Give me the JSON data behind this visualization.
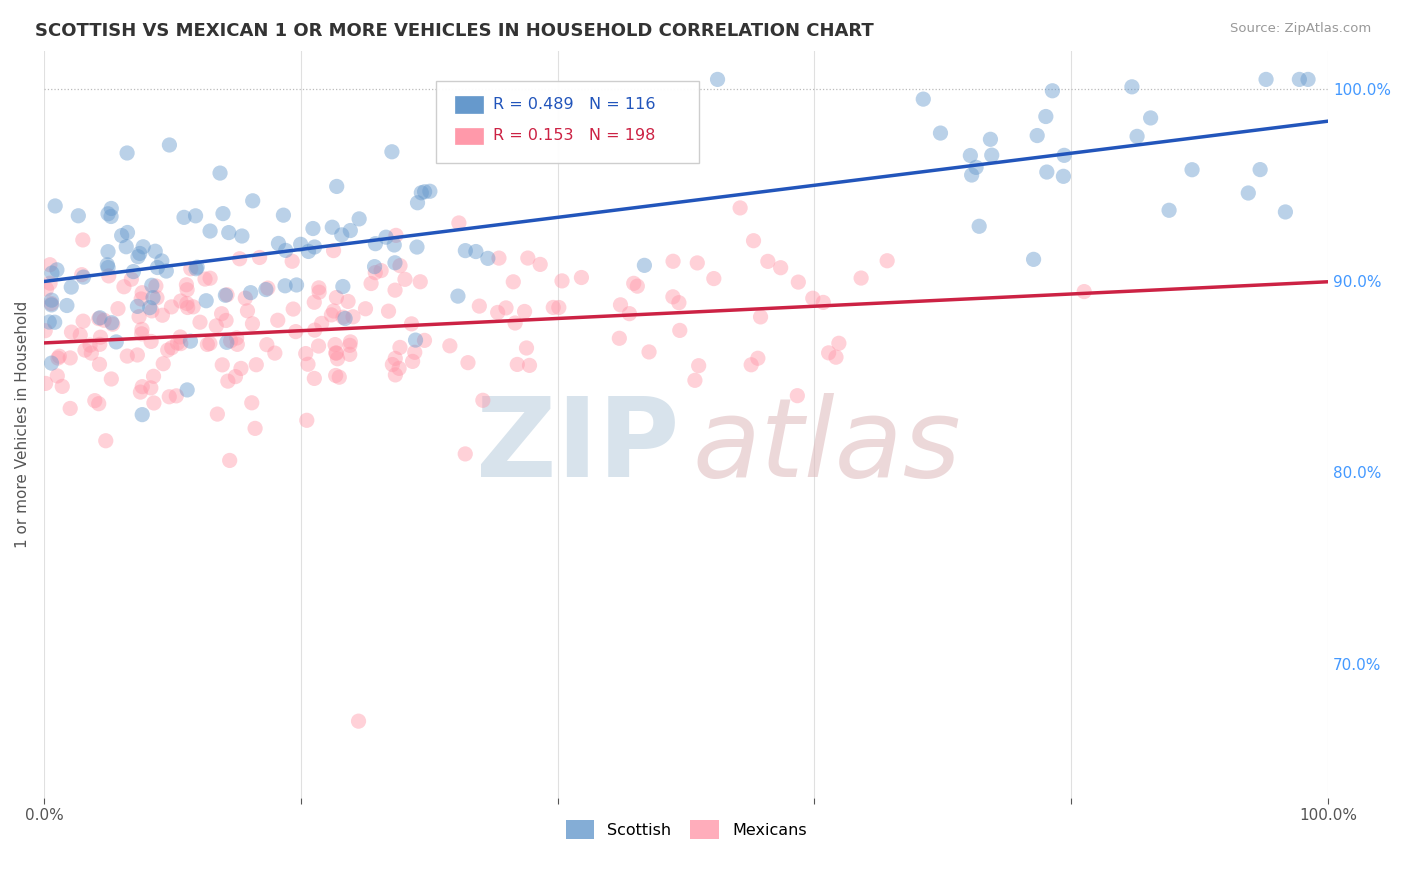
{
  "title": "SCOTTISH VS MEXICAN 1 OR MORE VEHICLES IN HOUSEHOLD CORRELATION CHART",
  "source_text": "Source: ZipAtlas.com",
  "ylabel": "1 or more Vehicles in Household",
  "xlim": [
    0.0,
    1.0
  ],
  "ylim": [
    0.63,
    1.02
  ],
  "x_ticks": [
    0.0,
    0.2,
    0.4,
    0.6,
    0.8,
    1.0
  ],
  "x_tick_labels": [
    "0.0%",
    "",
    "",
    "",
    "",
    "100.0%"
  ],
  "y_ticks_right": [
    0.7,
    0.8,
    0.9,
    1.0
  ],
  "y_tick_labels_right": [
    "70.0%",
    "80.0%",
    "90.0%",
    "100.0%"
  ],
  "background_color": "#ffffff",
  "legend_R_blue": "R = 0.489",
  "legend_N_blue": "N = 116",
  "legend_R_pink": "R = 0.153",
  "legend_N_pink": "N = 198",
  "blue_color": "#6699cc",
  "pink_color": "#ff99aa",
  "line_blue_color": "#2255bb",
  "line_pink_color": "#cc2244",
  "dot_size": 120,
  "dot_alpha": 0.45
}
